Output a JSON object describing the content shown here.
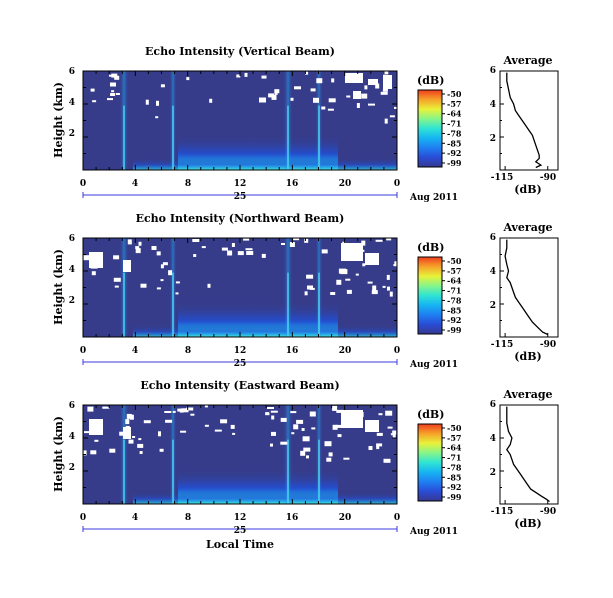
{
  "colors": {
    "background": "#363c8a",
    "gap": "#ffffff",
    "date_line": "#3b3be0",
    "axes": "#000000"
  },
  "colorscale": [
    "#36388f",
    "#2a4cd6",
    "#1f7ff2",
    "#16b4f2",
    "#2fe4d4",
    "#86f58a",
    "#e8f23a",
    "#f6a229",
    "#ee3e1e"
  ],
  "chart_data": [
    {
      "type": "heatmap",
      "title": "Echo Intensity (Vertical Beam)",
      "ylabel": "Height (km)",
      "xlabel": "",
      "xticks": [
        "0",
        "4",
        "8",
        "12",
        "16",
        "20",
        "0"
      ],
      "yticks": [
        "6",
        "4",
        "2"
      ],
      "x_range": [
        0,
        24
      ],
      "y_range": [
        0,
        6
      ],
      "date_label": "25",
      "date_suffix": "Aug 2011",
      "colorbar": {
        "label": "(dB)",
        "ticks": [
          "-50",
          "-57",
          "-64",
          "-71",
          "-78",
          "-85",
          "-92",
          "-99"
        ]
      },
      "profile": {
        "type": "line",
        "title": "Average",
        "xlabel": "(dB)",
        "xticks": [
          "-115",
          "-90"
        ],
        "yticks": [
          "6",
          "4",
          "2"
        ],
        "x_range": [
          -118,
          -84
        ],
        "y_range": [
          0,
          6
        ],
        "x": [
          -97,
          -94,
          -97,
          -95,
          -95,
          -96,
          -97,
          -98,
          -99,
          -101,
          -103,
          -105,
          -107,
          -109,
          -110,
          -112,
          -113,
          -114,
          -114
        ],
        "y": [
          0.15,
          0.3,
          0.5,
          0.7,
          0.9,
          1.2,
          1.5,
          1.8,
          2.1,
          2.4,
          2.7,
          3.0,
          3.3,
          3.6,
          4.0,
          4.4,
          4.9,
          5.4,
          5.9
        ]
      }
    },
    {
      "type": "heatmap",
      "title": "Echo Intensity (Northward Beam)",
      "ylabel": "Height (km)",
      "xlabel": "",
      "xticks": [
        "0",
        "4",
        "8",
        "12",
        "16",
        "20",
        "0"
      ],
      "yticks": [
        "6",
        "4",
        "2"
      ],
      "x_range": [
        0,
        24
      ],
      "y_range": [
        0,
        6
      ],
      "date_label": "25",
      "date_suffix": "Aug 2011",
      "colorbar": {
        "label": "(dB)",
        "ticks": [
          "-50",
          "-57",
          "-64",
          "-71",
          "-78",
          "-85",
          "-92",
          "-99"
        ]
      },
      "profile": {
        "type": "line",
        "title": "Average",
        "xlabel": "(dB)",
        "xticks": [
          "-115",
          "-90"
        ],
        "yticks": [
          "6",
          "4",
          "2"
        ],
        "x_range": [
          -118,
          -84
        ],
        "y_range": [
          0,
          6
        ],
        "x": [
          -90,
          -93,
          -95,
          -97,
          -99,
          -101,
          -103,
          -105,
          -107,
          -109,
          -110,
          -111,
          -112,
          -114,
          -113,
          -114,
          -115,
          -114,
          -114
        ],
        "y": [
          0.15,
          0.3,
          0.5,
          0.7,
          0.9,
          1.2,
          1.5,
          1.8,
          2.1,
          2.4,
          2.7,
          3.0,
          3.3,
          3.6,
          4.0,
          4.4,
          4.9,
          5.4,
          5.9
        ]
      }
    },
    {
      "type": "heatmap",
      "title": "Echo Intensity (Eastward Beam)",
      "ylabel": "Height (km)",
      "xlabel": "Local Time",
      "xticks": [
        "0",
        "4",
        "8",
        "12",
        "16",
        "20",
        "0"
      ],
      "yticks": [
        "6",
        "4",
        "2"
      ],
      "x_range": [
        0,
        24
      ],
      "y_range": [
        0,
        6
      ],
      "date_label": "25",
      "date_suffix": "Aug 2011",
      "colorbar": {
        "label": "(dB)",
        "ticks": [
          "-50",
          "-57",
          "-64",
          "-71",
          "-78",
          "-85",
          "-92",
          "-99"
        ]
      },
      "profile": {
        "type": "line",
        "title": "Average",
        "xlabel": "(dB)",
        "xticks": [
          "-115",
          "-90"
        ],
        "yticks": [
          "6",
          "4",
          "2"
        ],
        "x_range": [
          -118,
          -84
        ],
        "y_range": [
          0,
          6
        ],
        "x": [
          -89,
          -91,
          -94,
          -97,
          -100,
          -102,
          -104,
          -106,
          -108,
          -110,
          -111,
          -112,
          -114,
          -112,
          -111,
          -113,
          -114,
          -114,
          -114
        ],
        "y": [
          0.15,
          0.3,
          0.5,
          0.7,
          0.9,
          1.2,
          1.5,
          1.8,
          2.1,
          2.4,
          2.7,
          3.0,
          3.3,
          3.6,
          4.0,
          4.4,
          4.9,
          5.4,
          5.9
        ]
      }
    }
  ]
}
